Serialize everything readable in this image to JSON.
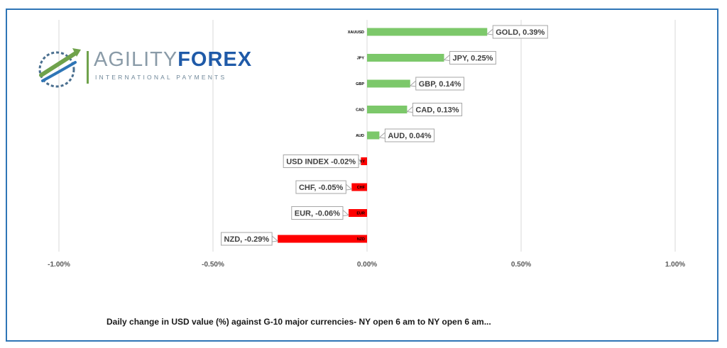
{
  "logo": {
    "brand_part1": "AGILITY",
    "brand_part2": "FOREX",
    "tagline": "INTERNATIONAL PAYMENTS",
    "icon": "globe-swoosh-icon"
  },
  "caption": "Daily change in  USD value (%)  against  G-10 major currencies- NY open 6 am to NY open 6 am...",
  "colors": {
    "positive": "#7cc86a",
    "negative": "#ff0000",
    "frame": "#2e75b6",
    "grid": "#d9d9d9"
  },
  "chart_data": {
    "type": "bar",
    "orientation": "horizontal",
    "title": "",
    "xlabel": "",
    "ylabel": "",
    "xlim": [
      -0.01,
      0.01
    ],
    "x_ticks": [
      -0.01,
      -0.005,
      0,
      0.005,
      0.01
    ],
    "x_tick_labels": [
      "-1.00%",
      "-0.50%",
      "0.00%",
      "0.50%",
      "1.00%"
    ],
    "grid": "vertical",
    "categories": [
      "XAUUSD",
      "JPY",
      "GBP",
      "CAD",
      "AUD",
      "DXY",
      "CHF",
      "EUR",
      "NZD"
    ],
    "values": [
      0.0039,
      0.0025,
      0.0014,
      0.0013,
      0.0004,
      -0.0002,
      -0.0005,
      -0.0006,
      -0.0029
    ],
    "data_labels": [
      "GOLD, 0.39%",
      "JPY, 0.25%",
      "GBP, 0.14%",
      "CAD, 0.13%",
      "AUD, 0.04%",
      "USD INDEX -0.02%",
      "CHF, -0.05%",
      "EUR, -0.06%",
      "NZD, -0.29%"
    ]
  }
}
